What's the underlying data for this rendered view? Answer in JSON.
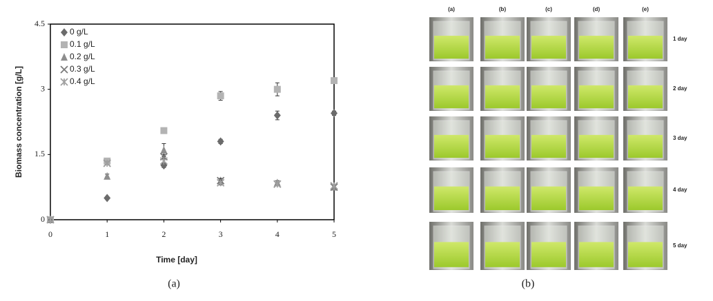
{
  "chart_data": {
    "type": "scatter",
    "xlabel": "Time [day]",
    "ylabel": "Biomass concentration [g/L]",
    "x": [
      0,
      1,
      2,
      3,
      4,
      5
    ],
    "xlim": [
      0,
      5
    ],
    "xticks": [
      0,
      1,
      2,
      3,
      4,
      5
    ],
    "ylim": [
      0,
      4.5
    ],
    "yticks": [
      0,
      1.5,
      3,
      4.5
    ],
    "legend": "upper-left",
    "series": [
      {
        "name": "0 g/L",
        "color": "#6b6b6b",
        "marker": "diamond",
        "values": [
          0,
          0.5,
          1.25,
          1.8,
          2.4,
          2.45
        ],
        "errors": [
          0,
          0.03,
          0.05,
          0.05,
          0.1,
          0.05
        ]
      },
      {
        "name": "0.1 g/L",
        "color": "#b3b3b3",
        "marker": "square",
        "values": [
          0,
          1.35,
          2.05,
          2.85,
          3.0,
          3.2
        ],
        "errors": [
          0,
          0.05,
          0.05,
          0.1,
          0.15,
          0.05
        ]
      },
      {
        "name": "0.2 g/L",
        "color": "#8e8e8e",
        "marker": "triangle",
        "values": [
          0,
          1.0,
          1.6,
          0.9,
          0.85,
          0.75
        ],
        "errors": [
          0,
          0.05,
          0.15,
          0.05,
          0.05,
          0.05
        ]
      },
      {
        "name": "0.3 g/L",
        "color": "#7a7a7a",
        "marker": "x",
        "values": [
          0,
          1.3,
          1.45,
          0.9,
          0.82,
          0.75
        ],
        "errors": [
          0,
          0.03,
          0.05,
          0.05,
          0.03,
          0.03
        ]
      },
      {
        "name": "0.4 g/L",
        "color": "#a0a0a0",
        "marker": "star",
        "values": [
          0,
          1.3,
          1.35,
          0.85,
          0.82,
          0.78
        ],
        "errors": [
          0,
          0.03,
          0.05,
          0.05,
          0.03,
          0.03
        ]
      }
    ]
  },
  "photo_panel": {
    "columns": [
      "(a)",
      "(b)",
      "(c)",
      "(d)",
      "(e)"
    ],
    "rows": [
      "1 day",
      "2 day",
      "3 day",
      "4 day",
      "5 day"
    ]
  },
  "captions": [
    "(a)",
    "(b)"
  ]
}
